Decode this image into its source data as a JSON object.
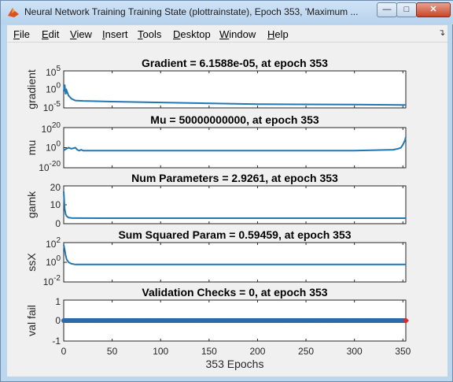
{
  "window": {
    "title": "Neural Network Training Training State (plottrainstate), Epoch 353, 'Maximum ...",
    "minimize_glyph": "—",
    "maximize_glyph": "□",
    "close_glyph": "✕",
    "app_icon": "matlab-icon"
  },
  "menu": [
    {
      "underline": "F",
      "rest": "ile"
    },
    {
      "underline": "E",
      "rest": "dit"
    },
    {
      "underline": "V",
      "rest": "iew"
    },
    {
      "underline": "I",
      "rest": "nsert"
    },
    {
      "underline": "T",
      "rest": "ools"
    },
    {
      "underline": "D",
      "rest": "esktop"
    },
    {
      "underline": "W",
      "rest": "indow"
    },
    {
      "underline": "H",
      "rest": "elp"
    }
  ],
  "menu_arrow": "↴",
  "chart_data": [
    {
      "type": "line",
      "title": "Gradient = 6.1588e-05, at epoch 353",
      "ylabel": "gradient",
      "yscale": "log",
      "ylim": [
        1e-05,
        100000.0
      ],
      "yticks": [
        "10^5",
        "10^0",
        "10^-5"
      ],
      "x": [
        0,
        1,
        2,
        3,
        5,
        8,
        12,
        20,
        50,
        100,
        200,
        300,
        353
      ],
      "y": [
        0.3,
        20,
        0.05,
        0.5,
        0.02,
        0.003,
        0.001,
        0.0008,
        0.0005,
        0.0003,
        0.0001,
        8e-05,
        6.2e-05
      ]
    },
    {
      "type": "line",
      "title": "Mu = 50000000000, at epoch 353",
      "ylabel": "mu",
      "yscale": "log",
      "ylim": [
        1e-20,
        1e+20
      ],
      "yticks": [
        "10^20",
        "10^0",
        "10^-20"
      ],
      "x": [
        0,
        1,
        3,
        5,
        8,
        12,
        14,
        16,
        18,
        20,
        50,
        100,
        200,
        300,
        340,
        345,
        348,
        350,
        352,
        353
      ],
      "y": [
        0.001,
        0.01,
        0.1,
        1,
        0.1,
        1,
        0.01,
        0.001,
        0.01,
        0.001,
        0.001,
        0.001,
        0.001,
        0.001,
        0.01,
        0.1,
        1,
        1000,
        10000000.0,
        50000000000.0
      ]
    },
    {
      "type": "line",
      "title": "Num Parameters = 2.9261, at epoch 353",
      "ylabel": "gamk",
      "ylim": [
        0,
        20
      ],
      "yticks": [
        "20",
        "10",
        "0"
      ],
      "x": [
        0,
        1,
        2,
        3,
        5,
        8,
        12,
        50,
        100,
        200,
        300,
        353
      ],
      "y": [
        17,
        8,
        5,
        4,
        3.2,
        3.0,
        2.95,
        2.93,
        2.93,
        2.93,
        2.93,
        2.93
      ]
    },
    {
      "type": "line",
      "title": "Sum Squared Param = 0.59459, at epoch 353",
      "ylabel": "ssX",
      "yscale": "log",
      "ylim": [
        0.01,
        100
      ],
      "yticks": [
        "10^2",
        "10^0",
        "10^-2"
      ],
      "x": [
        0,
        1,
        2,
        3,
        5,
        8,
        12,
        50,
        100,
        200,
        300,
        353
      ],
      "y": [
        60,
        20,
        5,
        2,
        1,
        0.7,
        0.6,
        0.6,
        0.595,
        0.595,
        0.595,
        0.59459
      ]
    },
    {
      "type": "scatter",
      "title": "Validation Checks = 0, at epoch 353",
      "ylabel": "val fail",
      "ylim": [
        -1,
        1
      ],
      "yticks": [
        "1",
        "0",
        "-1"
      ],
      "x_count": 354,
      "y_const": 0,
      "last_marker_color": "#e0272a",
      "marker_color": "#2b6aa8"
    }
  ],
  "xaxis": {
    "xlim": [
      0,
      353
    ],
    "xticks": [
      "0",
      "50",
      "100",
      "150",
      "200",
      "250",
      "300",
      "350"
    ],
    "xlabel": "353 Epochs"
  },
  "colors": {
    "line": "#1f77b4",
    "window_frame": "#bcd6ee",
    "figure_bg": "#f0f0f0"
  }
}
